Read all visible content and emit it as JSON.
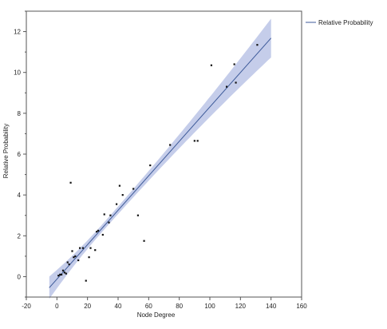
{
  "chart_data": {
    "type": "scatter",
    "xlabel": "Node Degree",
    "ylabel": "Relative Probability",
    "xlim": [
      -20,
      160
    ],
    "ylim": [
      -1,
      13
    ],
    "x_ticks": [
      "-20",
      "0",
      "20",
      "40",
      "60",
      "80",
      "100",
      "120",
      "140",
      "160"
    ],
    "y_ticks": [
      "0",
      "2",
      "4",
      "6",
      "8",
      "10",
      "12"
    ],
    "grid": false,
    "legend_position": "top-right, outside plot",
    "series": [
      {
        "kind": "points",
        "color": "#111111",
        "points": [
          [
            1,
            0.05
          ],
          [
            2,
            0.1
          ],
          [
            3,
            0.1
          ],
          [
            4,
            0.3
          ],
          [
            5,
            0.2
          ],
          [
            6,
            0.15
          ],
          [
            7,
            0.7
          ],
          [
            8,
            0.6
          ],
          [
            9,
            4.6
          ],
          [
            10,
            1.25
          ],
          [
            11,
            0.95
          ],
          [
            12,
            1.0
          ],
          [
            14,
            0.8
          ],
          [
            15,
            1.4
          ],
          [
            17,
            1.4
          ],
          [
            19,
            -0.2
          ],
          [
            21,
            0.95
          ],
          [
            22,
            1.4
          ],
          [
            25,
            1.3
          ],
          [
            26,
            2.2
          ],
          [
            27,
            2.25
          ],
          [
            30,
            2.05
          ],
          [
            31,
            3.05
          ],
          [
            34,
            2.65
          ],
          [
            35,
            3.0
          ],
          [
            39,
            3.55
          ],
          [
            41,
            4.45
          ],
          [
            43,
            4.0
          ],
          [
            50,
            4.3
          ],
          [
            53,
            3.0
          ],
          [
            57,
            1.75
          ],
          [
            61,
            5.45
          ],
          [
            74,
            6.45
          ],
          [
            90,
            6.65
          ],
          [
            92,
            6.65
          ],
          [
            101,
            10.35
          ],
          [
            111,
            9.3
          ],
          [
            116,
            10.4
          ],
          [
            117,
            9.5
          ],
          [
            131,
            11.35
          ]
        ]
      },
      {
        "kind": "fit",
        "name": "Relative Probability",
        "color": "#3d5a99",
        "band_color": "#c5cdea",
        "x_range": [
          -5,
          140
        ],
        "intercept": -0.12,
        "slope": 0.0843,
        "band_at_start": 0.55,
        "band_min": 0.18,
        "band_min_x": 30,
        "band_at_end": 0.95
      }
    ]
  }
}
